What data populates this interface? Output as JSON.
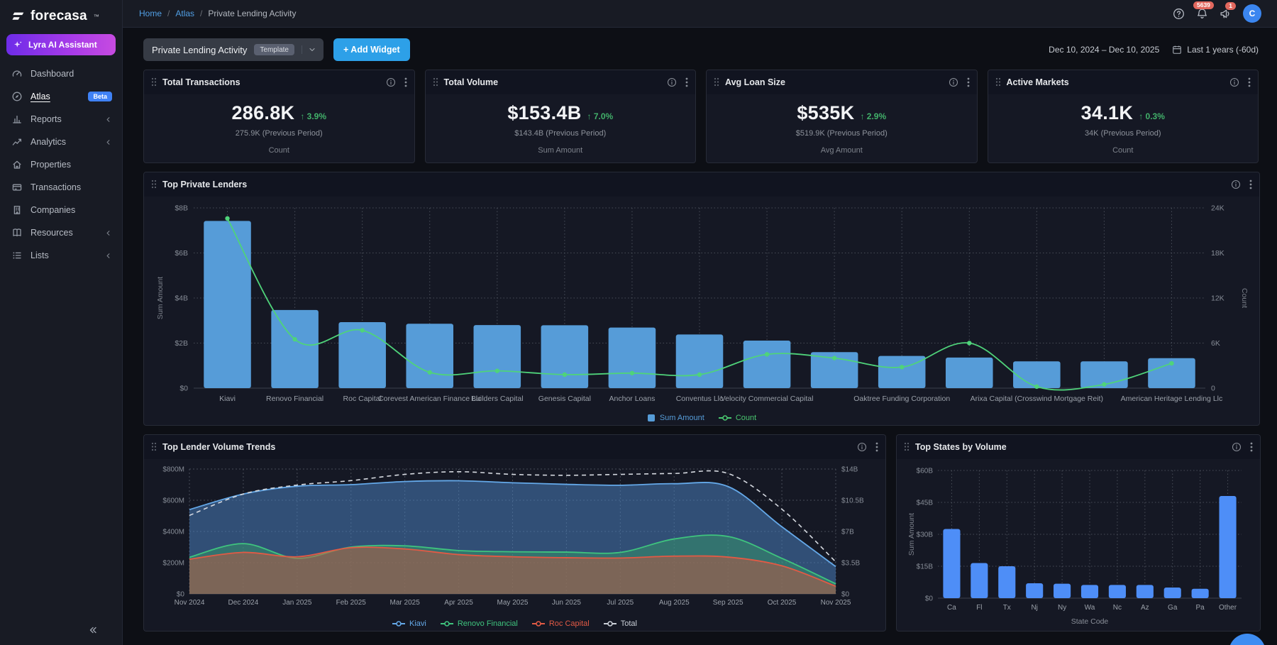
{
  "brand": {
    "name": "forecasa",
    "tm": "™"
  },
  "sidebar": {
    "assistant_label": "Lyra AI Assistant",
    "items": [
      {
        "label": "Dashboard",
        "icon": "dashboard"
      },
      {
        "label": "Atlas",
        "icon": "atlas",
        "badge": "Beta",
        "active": true
      },
      {
        "label": "Reports",
        "icon": "reports",
        "chevron": true
      },
      {
        "label": "Analytics",
        "icon": "analytics",
        "chevron": true
      },
      {
        "label": "Properties",
        "icon": "properties"
      },
      {
        "label": "Transactions",
        "icon": "transactions"
      },
      {
        "label": "Companies",
        "icon": "companies"
      },
      {
        "label": "Resources",
        "icon": "resources",
        "chevron": true
      },
      {
        "label": "Lists",
        "icon": "lists",
        "chevron": true
      }
    ]
  },
  "topbar": {
    "breadcrumb": [
      {
        "label": "Home",
        "link": true
      },
      {
        "label": "Atlas",
        "link": true
      },
      {
        "label": "Private Lending Activity",
        "link": false
      }
    ],
    "breadcrumb_separator": "/",
    "bell_badge": "5639",
    "announce_badge": "1",
    "avatar": "C"
  },
  "toolbar": {
    "board_title": "Private Lending Activity",
    "template_badge": "Template",
    "add_widget_label": "+ Add Widget",
    "date_range": "Dec 10, 2024 – Dec 10, 2025",
    "period_label": "Last 1 years (-60d)"
  },
  "kpis": [
    {
      "title": "Total Transactions",
      "value": "286.8K",
      "delta": "↑ 3.9%",
      "previous": "275.9K (Previous Period)",
      "metric": "Count"
    },
    {
      "title": "Total Volume",
      "value": "$153.4B",
      "delta": "↑ 7.0%",
      "previous": "$143.4B (Previous Period)",
      "metric": "Sum Amount"
    },
    {
      "title": "Avg Loan Size",
      "value": "$535K",
      "delta": "↑ 2.9%",
      "previous": "$519.9K (Previous Period)",
      "metric": "Avg Amount"
    },
    {
      "title": "Active Markets",
      "value": "34.1K",
      "delta": "↑ 0.3%",
      "previous": "34K (Previous Period)",
      "metric": "Count"
    }
  ],
  "chart_data": [
    {
      "type": "bar+line",
      "title": "Top Private Lenders",
      "categories": [
        "Kiavi",
        "Renovo Financial",
        "Roc Capital",
        "Corevest American Finance Llc",
        "Builders Capital",
        "Genesis Capital",
        "Anchor Loans",
        "Conventus Llc",
        "Velocity Commercial Capital",
        "",
        "Oaktree Funding Corporation",
        "",
        "Arixa Capital (Crosswind Mortgage Reit)",
        "",
        "American Heritage Lending Llc"
      ],
      "bar_series": {
        "name": "Sum Amount",
        "unit": "$B",
        "color": "#569CD8",
        "values": [
          7.42,
          3.47,
          2.93,
          2.86,
          2.8,
          2.79,
          2.69,
          2.38,
          2.11,
          1.6,
          1.43,
          1.36,
          1.19,
          1.19,
          1.33
        ]
      },
      "line_series": {
        "name": "Count",
        "unit": "K",
        "color": "#4fd37a",
        "values": [
          22.6,
          6.5,
          7.7,
          2.1,
          2.3,
          1.8,
          2.0,
          1.8,
          4.5,
          4.0,
          2.8,
          6.0,
          0.2,
          0.5,
          3.3
        ]
      },
      "y_left": {
        "name": "Sum Amount",
        "max": 8,
        "tick_labels": [
          "$8B",
          "$6B",
          "$4B",
          "$2B",
          "$0"
        ],
        "tick_values": [
          8,
          6,
          4,
          2,
          0
        ]
      },
      "y_right": {
        "name": "Count",
        "max": 24,
        "tick_labels": [
          "24K",
          "18K",
          "12K",
          "6K",
          "0"
        ],
        "tick_values": [
          24,
          18,
          12,
          6,
          0
        ]
      },
      "grid": "dotted",
      "legend": [
        {
          "label": "Sum Amount",
          "color": "#569CD8",
          "marker": "rect"
        },
        {
          "label": "Count",
          "color": "#49c56f",
          "marker": "line"
        }
      ]
    },
    {
      "type": "area",
      "title": "Top Lender Volume Trends",
      "x": [
        "Nov 2024",
        "Dec 2024",
        "Jan 2025",
        "Feb 2025",
        "Mar 2025",
        "Apr 2025",
        "May 2025",
        "Jun 2025",
        "Jul 2025",
        "Aug 2025",
        "Sep 2025",
        "Oct 2025",
        "Nov 2025"
      ],
      "series": [
        {
          "name": "Kiavi",
          "axis": "left",
          "unit": "$M",
          "color": "#64a8e8",
          "fill": "rgba(73,125,185,0.55)",
          "values": [
            540,
            640,
            690,
            700,
            720,
            725,
            712,
            702,
            696,
            706,
            688,
            430,
            175
          ]
        },
        {
          "name": "Renovo Financial",
          "axis": "left",
          "unit": "$M",
          "color": "#3fc47e",
          "fill": "rgba(56,160,105,0.45)",
          "values": [
            235,
            322,
            228,
            300,
            308,
            278,
            270,
            268,
            266,
            352,
            368,
            228,
            65
          ]
        },
        {
          "name": "Roc Capital",
          "axis": "left",
          "unit": "$M",
          "color": "#e25a45",
          "fill": "rgba(205,85,60,0.48)",
          "values": [
            222,
            266,
            238,
            296,
            288,
            252,
            238,
            232,
            230,
            242,
            236,
            180,
            49
          ]
        },
        {
          "name": "Total",
          "axis": "right",
          "unit": "$B",
          "color": "#d6dae1",
          "dashed": true,
          "values": [
            8.8,
            11.2,
            12.2,
            12.7,
            13.4,
            13.7,
            13.4,
            13.3,
            13.4,
            13.5,
            13.5,
            9.5,
            3.6
          ]
        }
      ],
      "y_left": {
        "max": 800,
        "tick_labels": [
          "$800M",
          "$600M",
          "$400M",
          "$200M",
          "$0"
        ],
        "tick_values": [
          800,
          600,
          400,
          200,
          0
        ]
      },
      "y_right": {
        "max": 14,
        "tick_labels": [
          "$14B",
          "$10.5B",
          "$7B",
          "$3.5B",
          "$0"
        ],
        "tick_values": [
          14,
          10.5,
          7,
          3.5,
          0
        ]
      },
      "grid": "dashed",
      "legend": [
        {
          "label": "Kiavi",
          "color": "#64a8e8",
          "marker": "line"
        },
        {
          "label": "Renovo Financial",
          "color": "#3fc47e",
          "marker": "line"
        },
        {
          "label": "Roc Capital",
          "color": "#e25a45",
          "marker": "line"
        },
        {
          "label": "Total",
          "color": "#c9ced6",
          "marker": "line"
        }
      ]
    },
    {
      "type": "bar",
      "title": "Top States by Volume",
      "categories": [
        "Ca",
        "Fl",
        "Tx",
        "Nj",
        "Ny",
        "Wa",
        "Nc",
        "Az",
        "Ga",
        "Pa",
        "Other"
      ],
      "values": [
        32.5,
        16.5,
        15,
        7,
        6.8,
        6.2,
        6.2,
        6.2,
        5,
        4.4,
        48
      ],
      "unit": "$B",
      "bar_color": "#4e8ef7",
      "xlabel": "State Code",
      "ylabel": "Sum Amount",
      "y": {
        "max": 60,
        "tick_labels": [
          "$60B",
          "$45B",
          "$30B",
          "$15B",
          "$0"
        ],
        "tick_values": [
          60,
          45,
          30,
          15,
          0
        ]
      },
      "grid": "dotted"
    }
  ],
  "colors": {
    "accent_blue": "#2da0e8",
    "link_blue": "#519fe5",
    "kpi_green": "#42b16a",
    "bar_blue": "#569CD8",
    "bright_blue": "#4e8ef7",
    "line_green": "#4fd37a",
    "badge_red": "#e2685e",
    "beta_blue": "#3f82f6",
    "card_bg": "#151824",
    "sidebar_bg": "#181b24",
    "page_bg": "#0d0f15",
    "lyra_gradient_from": "#6d2ce8",
    "lyra_gradient_to": "#c74be0"
  }
}
